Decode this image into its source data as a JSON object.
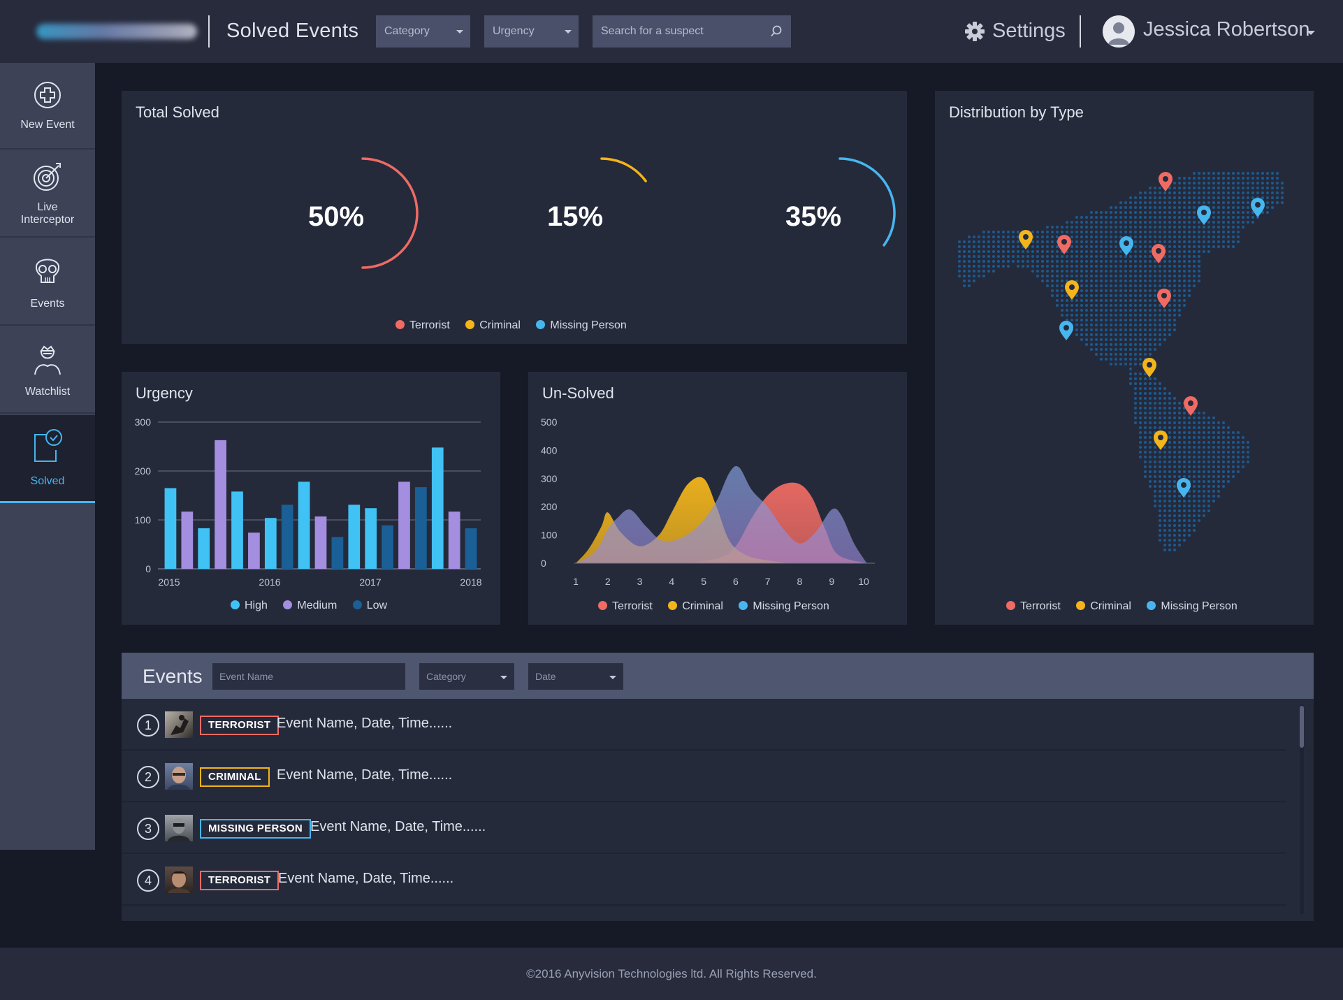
{
  "header": {
    "title": "Solved Events",
    "category_label": "Category",
    "urgency_label": "Urgency",
    "search_placeholder": "Search for a suspect",
    "settings_label": "Settings",
    "user_name": "Jessica Robertson"
  },
  "sidebar": {
    "items": [
      {
        "label": "New Event",
        "icon": "plus-circle-icon"
      },
      {
        "label": "Live Interceptor",
        "icon": "target-icon"
      },
      {
        "label": "Events",
        "icon": "skull-icon"
      },
      {
        "label": "Watchlist",
        "icon": "person-icon"
      },
      {
        "label": "Solved",
        "icon": "solved-check-icon"
      }
    ],
    "active": "Solved"
  },
  "colors": {
    "terrorist": "#ef6b63",
    "criminal": "#f3b51b",
    "missing_person": "#47b6ef",
    "high": "#41c2f4",
    "medium": "#a48ee0",
    "low": "#1a5f96"
  },
  "total_solved": {
    "title": "Total Solved",
    "items": [
      {
        "label": "50%",
        "value": 50,
        "color": "#ef6b63"
      },
      {
        "label": "15%",
        "value": 15,
        "color": "#f3b51b"
      },
      {
        "label": "35%",
        "value": 35,
        "color": "#47b6ef"
      }
    ],
    "legend": [
      "Terrorist",
      "Criminal",
      "Missing Person"
    ]
  },
  "urgency": {
    "title": "Urgency",
    "legend": [
      "High",
      "Medium",
      "Low"
    ]
  },
  "unsolved": {
    "title": "Un-Solved",
    "legend": [
      "Terrorist",
      "Criminal",
      "Missing Person"
    ]
  },
  "distribution": {
    "title": "Distribution by Type",
    "legend": [
      "Terrorist",
      "Criminal",
      "Missing Person"
    ],
    "pins": [
      {
        "type": "terrorist"
      },
      {
        "type": "missing_person"
      },
      {
        "type": "missing_person"
      },
      {
        "type": "criminal"
      },
      {
        "type": "terrorist"
      },
      {
        "type": "missing_person"
      },
      {
        "type": "terrorist"
      },
      {
        "type": "criminal"
      },
      {
        "type": "terrorist"
      },
      {
        "type": "missing_person"
      },
      {
        "type": "criminal"
      },
      {
        "type": "terrorist"
      },
      {
        "type": "criminal"
      },
      {
        "type": "missing_person"
      }
    ]
  },
  "chart_data": [
    {
      "type": "bar",
      "title": "Urgency",
      "xlabel": "",
      "ylabel": "",
      "ylim": [
        0,
        300
      ],
      "yticks": [
        0,
        100,
        200,
        300
      ],
      "xticks": [
        "2015",
        "2016",
        "2017",
        "2018"
      ],
      "grid": true,
      "legend_position": "bottom",
      "series": [
        {
          "name": "High",
          "color": "#41c2f4"
        },
        {
          "name": "Medium",
          "color": "#a48ee0"
        },
        {
          "name": "Low",
          "color": "#1a5f96"
        }
      ],
      "bars": [
        {
          "series": "High",
          "value": 165
        },
        {
          "series": "Medium",
          "value": 117
        },
        {
          "series": "High",
          "value": 83
        },
        {
          "series": "Medium",
          "value": 263
        },
        {
          "series": "High",
          "value": 158
        },
        {
          "series": "Medium",
          "value": 74
        },
        {
          "series": "High",
          "value": 104
        },
        {
          "series": "Low",
          "value": 131
        },
        {
          "series": "High",
          "value": 178
        },
        {
          "series": "Medium",
          "value": 107
        },
        {
          "series": "Low",
          "value": 65
        },
        {
          "series": "High",
          "value": 131
        },
        {
          "series": "High",
          "value": 124
        },
        {
          "series": "Low",
          "value": 89
        },
        {
          "series": "Medium",
          "value": 178
        },
        {
          "series": "Low",
          "value": 167
        },
        {
          "series": "High",
          "value": 248
        },
        {
          "series": "Medium",
          "value": 117
        },
        {
          "series": "Low",
          "value": 83
        }
      ]
    },
    {
      "type": "area",
      "title": "Un-Solved",
      "xlabel": "",
      "ylabel": "",
      "ylim": [
        0,
        500
      ],
      "yticks": [
        0,
        100,
        200,
        300,
        400,
        500
      ],
      "xlim": [
        1,
        10
      ],
      "xticks": [
        1,
        2,
        3,
        4,
        5,
        6,
        7,
        8,
        9,
        10
      ],
      "legend_position": "bottom",
      "series": [
        {
          "name": "Terrorist",
          "color": "#ef6b63",
          "points": [
            [
              4.5,
              0
            ],
            [
              5.5,
              20
            ],
            [
              6,
              60
            ],
            [
              6.5,
              160
            ],
            [
              7,
              240
            ],
            [
              7.5,
              280
            ],
            [
              8,
              280
            ],
            [
              8.4,
              230
            ],
            [
              8.8,
              120
            ],
            [
              9.2,
              30
            ],
            [
              10.1,
              0
            ]
          ]
        },
        {
          "name": "Criminal",
          "color": "#f3b51b",
          "points": [
            [
              1,
              0
            ],
            [
              1.4,
              50
            ],
            [
              1.8,
              130
            ],
            [
              2,
              180
            ],
            [
              2.4,
              110
            ],
            [
              3,
              60
            ],
            [
              3.6,
              100
            ],
            [
              4,
              180
            ],
            [
              4.5,
              280
            ],
            [
              5,
              300
            ],
            [
              5.4,
              200
            ],
            [
              5.8,
              80
            ],
            [
              6.3,
              30
            ],
            [
              7,
              10
            ],
            [
              8,
              0
            ],
            [
              10.1,
              0
            ]
          ]
        },
        {
          "name": "Missing Person",
          "color": "#7e9bd6",
          "points": [
            [
              1,
              0
            ],
            [
              1.6,
              40
            ],
            [
              2,
              120
            ],
            [
              2.3,
              160
            ],
            [
              2.7,
              190
            ],
            [
              3.2,
              130
            ],
            [
              3.7,
              80
            ],
            [
              4.3,
              90
            ],
            [
              4.9,
              140
            ],
            [
              5.4,
              220
            ],
            [
              5.8,
              320
            ],
            [
              6.1,
              340
            ],
            [
              6.5,
              260
            ],
            [
              7,
              200
            ],
            [
              7.5,
              120
            ],
            [
              8,
              70
            ],
            [
              8.5,
              110
            ],
            [
              9,
              190
            ],
            [
              9.3,
              170
            ],
            [
              9.7,
              70
            ],
            [
              10.1,
              0
            ]
          ]
        }
      ]
    },
    {
      "type": "pie",
      "title": "Total Solved",
      "series": [
        {
          "name": "Terrorist",
          "value": 50,
          "color": "#ef6b63"
        },
        {
          "name": "Criminal",
          "value": 15,
          "color": "#f3b51b"
        },
        {
          "name": "Missing Person",
          "value": 35,
          "color": "#47b6ef"
        }
      ]
    }
  ],
  "events": {
    "title": "Events",
    "name_placeholder": "Event Name",
    "category_label": "Category",
    "date_label": "Date",
    "rows": [
      {
        "num": "1",
        "badge": "TERRORIST",
        "badge_color": "#ef6b63",
        "text": "Event Name, Date, Time......"
      },
      {
        "num": "2",
        "badge": "CRIMINAL",
        "badge_color": "#f3b51b",
        "text": "Event Name, Date, Time......"
      },
      {
        "num": "3",
        "badge": "MISSING PERSON",
        "badge_color": "#47b6ef",
        "text": "Event Name, Date, Time......"
      },
      {
        "num": "4",
        "badge": "TERRORIST",
        "badge_color": "#ef6b63",
        "text": "Event Name, Date, Time......"
      }
    ]
  },
  "footer": {
    "text": "©2016 Anyvision Technologies ltd. All Rights Reserved."
  }
}
